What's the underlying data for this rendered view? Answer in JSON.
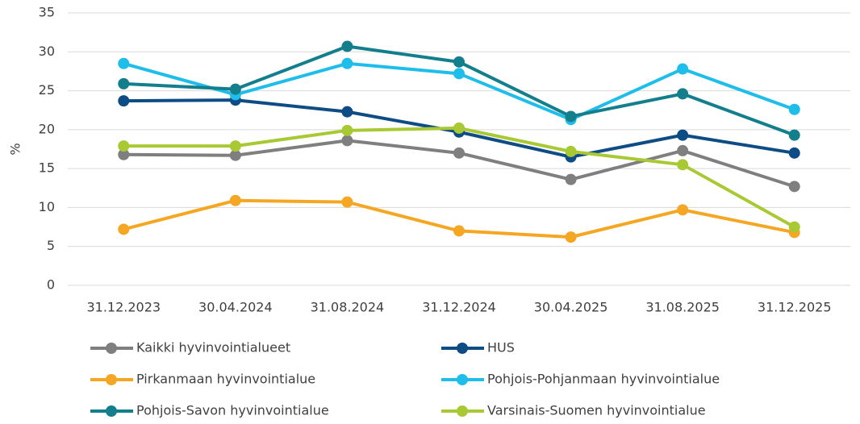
{
  "chart_data": {
    "type": "line",
    "ylabel": "%",
    "categories": [
      "31.12.2023",
      "30.04.2024",
      "31.08.2024",
      "31.12.2024",
      "30.04.2025",
      "31.08.2025",
      "31.12.2025"
    ],
    "series": [
      {
        "name": "Kaikki hyvinvointialueet",
        "color": "#7f7f7f",
        "values": [
          16.8,
          16.7,
          18.6,
          17.0,
          13.6,
          17.3,
          12.7
        ]
      },
      {
        "name": "HUS",
        "color": "#0e4c85",
        "values": [
          23.7,
          23.8,
          22.3,
          19.7,
          16.5,
          19.3,
          17.0
        ]
      },
      {
        "name": "Pirkanmaan hyvinvointialue",
        "color": "#f5a623",
        "values": [
          7.2,
          10.9,
          10.7,
          7.0,
          6.2,
          9.7,
          6.8
        ]
      },
      {
        "name": "Pohjois-Pohjanmaan hyvinvointialue",
        "color": "#1fbde9",
        "values": [
          28.5,
          24.5,
          28.5,
          27.2,
          21.3,
          27.8,
          22.6
        ]
      },
      {
        "name": "Pohjois-Savon hyvinvointialue",
        "color": "#137e8c",
        "values": [
          25.9,
          25.2,
          30.7,
          28.7,
          21.7,
          24.6,
          19.3
        ]
      },
      {
        "name": "Varsinais-Suomen hyvinvointialue",
        "color": "#a9c934",
        "values": [
          17.9,
          17.9,
          19.9,
          20.2,
          17.2,
          15.5,
          7.5
        ]
      }
    ],
    "ylim": [
      0,
      35
    ],
    "yticks": [
      0,
      5,
      10,
      15,
      20,
      25,
      30,
      35
    ],
    "grid": true
  }
}
